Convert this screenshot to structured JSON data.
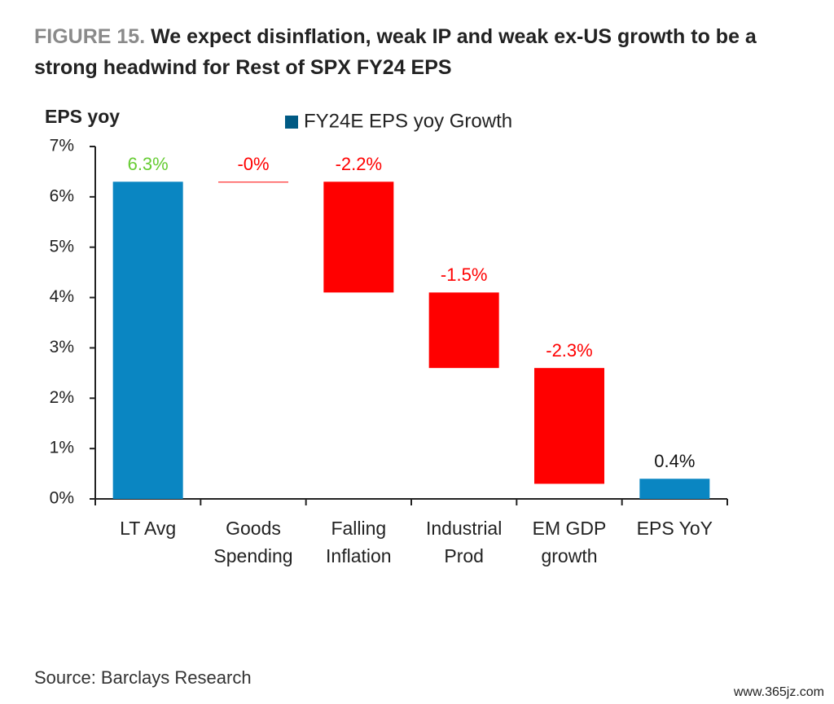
{
  "chart_data": {
    "type": "waterfall",
    "figure_label": "FIGURE 15.",
    "title": "We expect disinflation, weak IP and weak ex-US growth to be a strong headwind for Rest of SPX FY24 EPS",
    "y_label": "EPS yoy",
    "legend": {
      "name": "FY24E EPS yoy Growth",
      "color": "#005a84"
    },
    "categories": [
      [
        "LT Avg"
      ],
      [
        "Goods",
        "Spending"
      ],
      [
        "Falling",
        "Inflation"
      ],
      [
        "Industrial",
        "Prod"
      ],
      [
        "EM GDP",
        "growth"
      ],
      [
        "EPS YoY"
      ]
    ],
    "measure": [
      "absolute",
      "relative",
      "relative",
      "relative",
      "relative",
      "absolute"
    ],
    "values": [
      6.3,
      0,
      -2.2,
      -1.5,
      -2.3,
      0.4
    ],
    "value_labels": [
      "6.3%",
      "-0%",
      "-2.2%",
      "-1.5%",
      "-2.3%",
      "0.4%"
    ],
    "colors": [
      "#0a86c2",
      "#ff0000",
      "#ff0000",
      "#ff0000",
      "#ff0000",
      "#0a86c2"
    ],
    "label_colors": [
      "#66cc33",
      "#ff0000",
      "#ff0000",
      "#ff0000",
      "#ff0000",
      "#111111"
    ],
    "ylim": [
      0,
      7
    ],
    "yticks": [
      {
        "value": 0,
        "label": "0%"
      },
      {
        "value": 1,
        "label": "1%"
      },
      {
        "value": 2,
        "label": "2%"
      },
      {
        "value": 3,
        "label": "3%"
      },
      {
        "value": 4,
        "label": "4%"
      },
      {
        "value": 5,
        "label": "5%"
      },
      {
        "value": 6,
        "label": "6%"
      },
      {
        "value": 7,
        "label": "7%"
      }
    ],
    "source": "Source: Barclays Research",
    "watermark": "www.365jz.com"
  }
}
